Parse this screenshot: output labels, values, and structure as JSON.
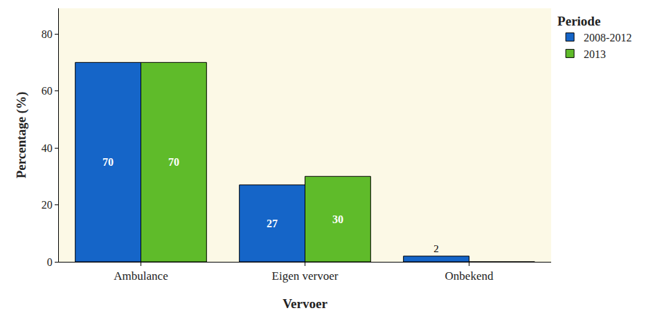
{
  "chart_data": {
    "type": "bar",
    "xlabel": "Vervoer",
    "ylabel": "Percentage (%)",
    "legend_title": "Periode",
    "categories": [
      "Ambulance",
      "Eigen vervoer",
      "Onbekend"
    ],
    "series": [
      {
        "name": "2008-2012",
        "color": "#1565c8",
        "values": [
          70,
          27,
          2
        ]
      },
      {
        "name": "2013",
        "color": "#5fbb2a",
        "values": [
          70,
          30,
          0
        ]
      }
    ],
    "ylim": [
      0,
      89
    ],
    "yticks": [
      0,
      20,
      40,
      60,
      80
    ],
    "grid": false,
    "legend": "top right",
    "data_labels": true
  }
}
